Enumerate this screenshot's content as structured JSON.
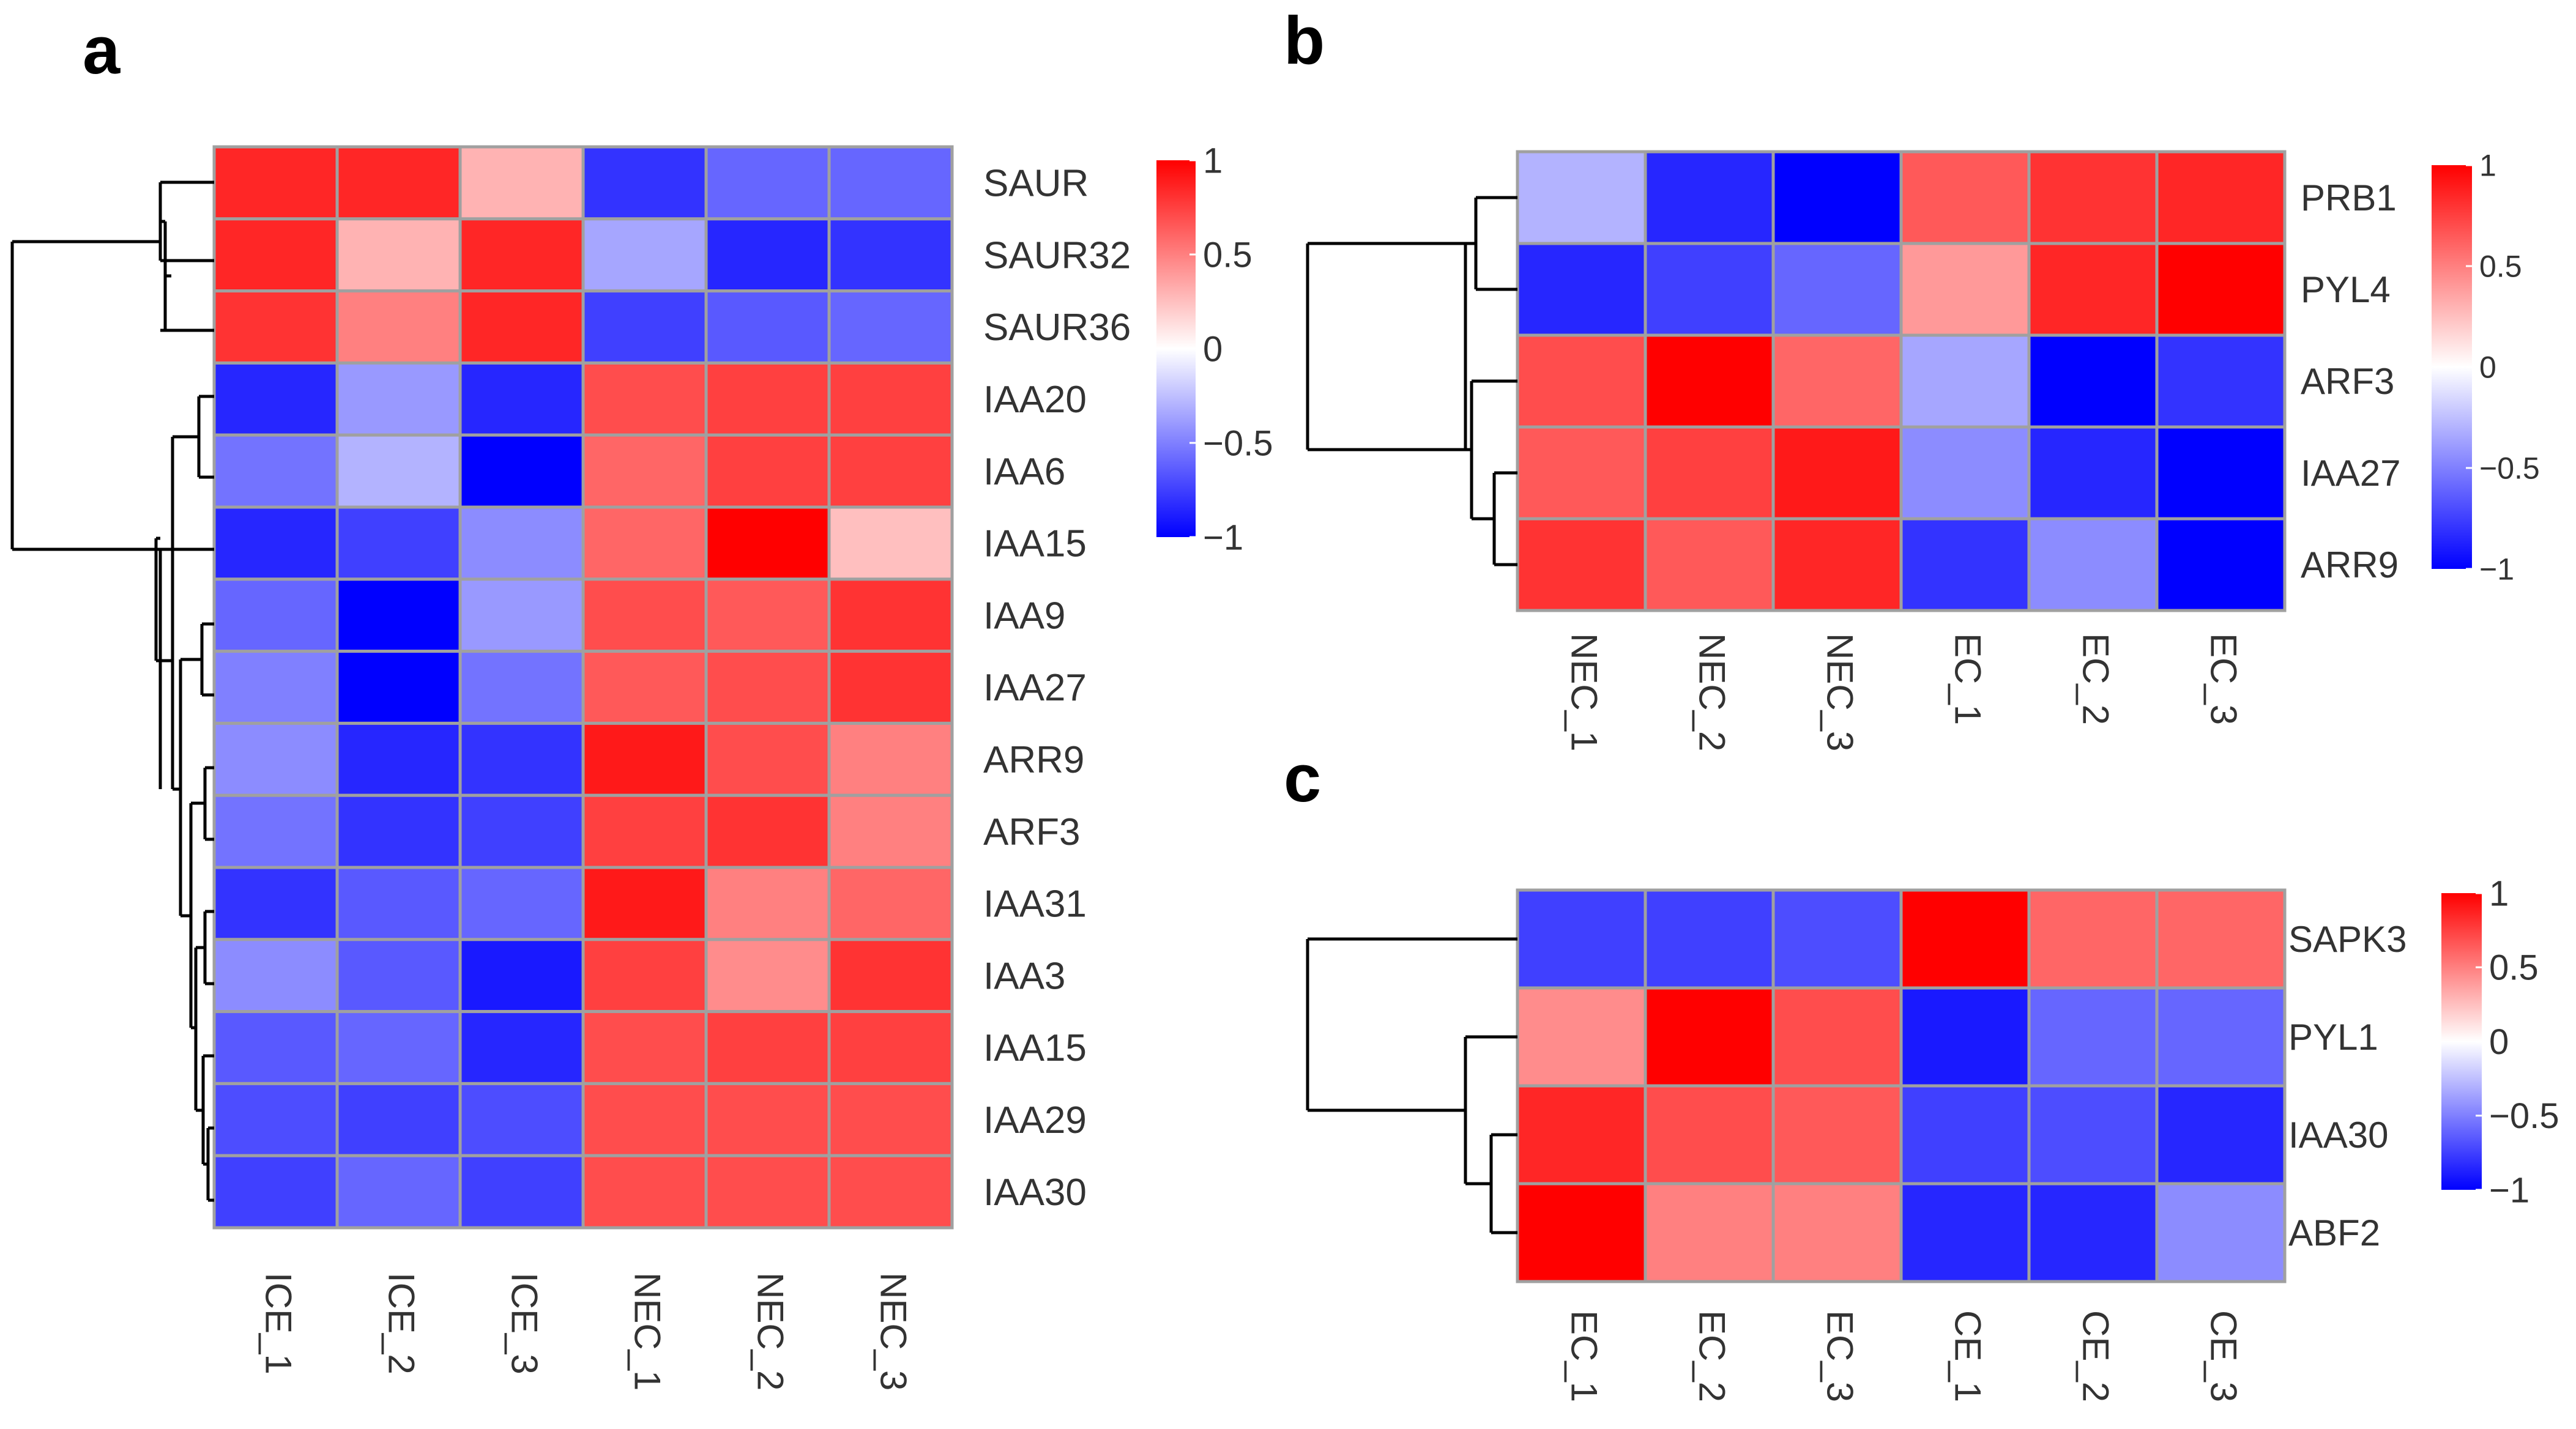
{
  "chart_data": [
    {
      "panel": "a",
      "type": "heatmap",
      "columns": [
        "ICE_1",
        "ICE_2",
        "ICE_3",
        "NEC_1",
        "NEC_2",
        "NEC_3"
      ],
      "rows": [
        "SAUR",
        "SAUR32",
        "SAUR36",
        "IAA20",
        "IAA6",
        "IAA15",
        "IAA9",
        "IAA27",
        "ARR9",
        "ARF3",
        "IAA31",
        "IAA3",
        "IAA15",
        "IAA29",
        "IAA30"
      ],
      "values": [
        [
          0.85,
          0.85,
          0.3,
          -0.8,
          -0.6,
          -0.6
        ],
        [
          0.85,
          0.3,
          0.85,
          -0.35,
          -0.85,
          -0.8
        ],
        [
          0.8,
          0.5,
          0.85,
          -0.75,
          -0.65,
          -0.6
        ],
        [
          -0.85,
          -0.4,
          -0.85,
          0.7,
          0.75,
          0.75
        ],
        [
          -0.55,
          -0.3,
          -1.0,
          0.6,
          0.75,
          0.75
        ],
        [
          -0.85,
          -0.75,
          -0.45,
          0.6,
          1.0,
          0.25
        ],
        [
          -0.6,
          -1.0,
          -0.4,
          0.7,
          0.65,
          0.8
        ],
        [
          -0.5,
          -1.0,
          -0.55,
          0.65,
          0.7,
          0.8
        ],
        [
          -0.45,
          -0.85,
          -0.8,
          0.9,
          0.7,
          0.5
        ],
        [
          -0.55,
          -0.8,
          -0.75,
          0.75,
          0.8,
          0.5
        ],
        [
          -0.8,
          -0.65,
          -0.6,
          0.9,
          0.5,
          0.6
        ],
        [
          -0.45,
          -0.65,
          -0.9,
          0.75,
          0.45,
          0.8
        ],
        [
          -0.65,
          -0.6,
          -0.85,
          0.7,
          0.75,
          0.75
        ],
        [
          -0.7,
          -0.75,
          -0.7,
          0.7,
          0.7,
          0.7
        ],
        [
          -0.75,
          -0.6,
          -0.75,
          0.7,
          0.7,
          0.7
        ]
      ],
      "scale": {
        "min": -1,
        "max": 1,
        "ticks": [
          "1",
          "0.5",
          "0",
          "−0.5",
          "−1"
        ]
      }
    },
    {
      "panel": "b",
      "type": "heatmap",
      "columns": [
        "NEC_1",
        "NEC_2",
        "NEC_3",
        "EC_1",
        "EC_2",
        "EC_3"
      ],
      "rows": [
        "PRB1",
        "PYL4",
        "ARF3",
        "IAA27",
        "ARR9"
      ],
      "values": [
        [
          -0.3,
          -0.85,
          -1.0,
          0.65,
          0.8,
          0.85
        ],
        [
          -0.85,
          -0.75,
          -0.6,
          0.4,
          0.85,
          1.0
        ],
        [
          0.7,
          1.0,
          0.6,
          -0.35,
          -1.0,
          -0.8
        ],
        [
          0.65,
          0.75,
          0.9,
          -0.45,
          -0.85,
          -1.0
        ],
        [
          0.8,
          0.65,
          0.85,
          -0.8,
          -0.45,
          -1.0
        ]
      ],
      "scale": {
        "min": -1,
        "max": 1,
        "ticks": [
          "1",
          "0.5",
          "0",
          "−0.5",
          "−1"
        ]
      }
    },
    {
      "panel": "c",
      "type": "heatmap",
      "columns": [
        "EC_1",
        "EC_2",
        "EC_3",
        "CE_1",
        "CE_2",
        "CE_3"
      ],
      "rows": [
        "SAPK3",
        "PYL1",
        "IAA30",
        "ABF2"
      ],
      "values": [
        [
          -0.75,
          -0.75,
          -0.7,
          1.0,
          0.6,
          0.6
        ],
        [
          0.45,
          1.0,
          0.7,
          -0.9,
          -0.6,
          -0.6
        ],
        [
          0.85,
          0.7,
          0.65,
          -0.75,
          -0.7,
          -0.85
        ],
        [
          1.0,
          0.5,
          0.5,
          -0.85,
          -0.85,
          -0.45
        ]
      ],
      "scale": {
        "min": -1,
        "max": 1,
        "ticks": [
          "1",
          "0.5",
          "0",
          "−0.5",
          "−1"
        ]
      }
    }
  ],
  "colors": {
    "low": "#0000ff",
    "mid": "#ffffff",
    "high": "#ff0000",
    "cell_border": "#a0a0a0",
    "dendrogram": "#000000",
    "text": "#333333"
  }
}
